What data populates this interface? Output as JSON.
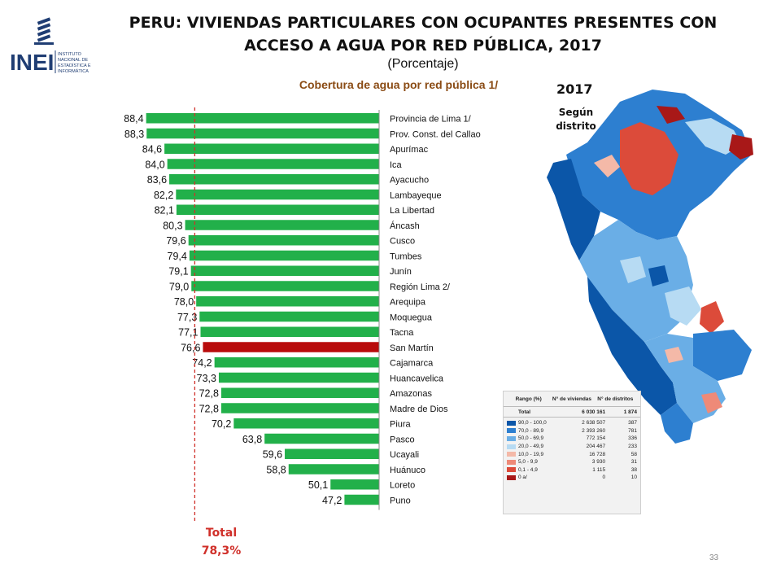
{
  "header": {
    "title": "PERU: VIVIENDAS PARTICULARES CON OCUPANTES PRESENTES CON ACCESO A AGUA POR RED PÚBLICA, 2017",
    "subtitle": "(Porcentaje)",
    "logo_text": "INEI",
    "logo_subtext": [
      "INSTITUTO",
      "NACIONAL DE",
      "ESTADÍSTICA E",
      "INFORMÁTICA"
    ]
  },
  "chart_data": {
    "type": "bar",
    "orientation": "horizontal",
    "title": "Cobertura de agua por red pública 1/",
    "categories": [
      "Provincia de Lima 1/",
      "Prov. Const. del Callao",
      "Apurímac",
      "Ica",
      "Ayacucho",
      "Lambayeque",
      "La Libertad",
      "Áncash",
      "Cusco",
      "Tumbes",
      "Junín",
      "Región Lima 2/",
      "Arequipa",
      "Moquegua",
      "Tacna",
      "San Martín",
      "Cajamarca",
      "Huancavelica",
      "Amazonas",
      "Madre de Dios",
      "Piura",
      "Pasco",
      "Ucayali",
      "Huánuco",
      "Loreto",
      "Puno"
    ],
    "value_labels": [
      "88,4",
      "88,3",
      "84,6",
      "84,0",
      "83,6",
      "82,2",
      "82,1",
      "80,3",
      "79,6",
      "79,4",
      "79,1",
      "79,0",
      "78,0",
      "77,3",
      "77,1",
      "76,6",
      "74,2",
      "73,3",
      "72,8",
      "72,8",
      "70,2",
      "63,8",
      "59,6",
      "58,8",
      "50,1",
      "47,2"
    ],
    "values": [
      88.4,
      88.3,
      84.6,
      84.0,
      83.6,
      82.2,
      82.1,
      80.3,
      79.6,
      79.4,
      79.1,
      79.0,
      78.0,
      77.3,
      77.1,
      76.6,
      74.2,
      73.3,
      72.8,
      72.8,
      70.2,
      63.8,
      59.6,
      58.8,
      50.1,
      47.2
    ],
    "highlight_category": "San Martín",
    "reference_line": 78.3,
    "total_label": "Total",
    "total_value": "78,3%",
    "colors": {
      "bar": "#22b04a",
      "highlight": "#b80c0c",
      "reference": "#d0302a"
    }
  },
  "map": {
    "year": "2017",
    "subtitle": "Según distrito",
    "legend": {
      "headers": [
        "Rango (%)",
        "N° de viviendas",
        "N° de distritos"
      ],
      "total": {
        "label": "Total",
        "viviendas": "6 030 161",
        "distritos": "1 874"
      },
      "rows": [
        {
          "color": "#0b56a8",
          "range": "90,0  -  100,0",
          "viviendas": "2 638 507",
          "distritos": "387"
        },
        {
          "color": "#2d7fd0",
          "range": "70,0  -  89,9",
          "viviendas": "2 393 260",
          "distritos": "781"
        },
        {
          "color": "#6aaee6",
          "range": "50,0  -  69,9",
          "viviendas": "772 154",
          "distritos": "336"
        },
        {
          "color": "#b7dbf3",
          "range": "20,0  -  49,9",
          "viviendas": "204 467",
          "distritos": "233"
        },
        {
          "color": "#f4b9a8",
          "range": "10,0  -  19,9",
          "viviendas": "16 728",
          "distritos": "58"
        },
        {
          "color": "#ee8a78",
          "range": "5,0  -  9,9",
          "viviendas": "3 930",
          "distritos": "31"
        },
        {
          "color": "#dc4b3a",
          "range": "0,1  -  4,9",
          "viviendas": "1 115",
          "distritos": "38"
        },
        {
          "color": "#a81818",
          "range": "0  a/",
          "viviendas": "0",
          "distritos": "10"
        }
      ]
    }
  },
  "footer": {
    "page_number": "33"
  }
}
